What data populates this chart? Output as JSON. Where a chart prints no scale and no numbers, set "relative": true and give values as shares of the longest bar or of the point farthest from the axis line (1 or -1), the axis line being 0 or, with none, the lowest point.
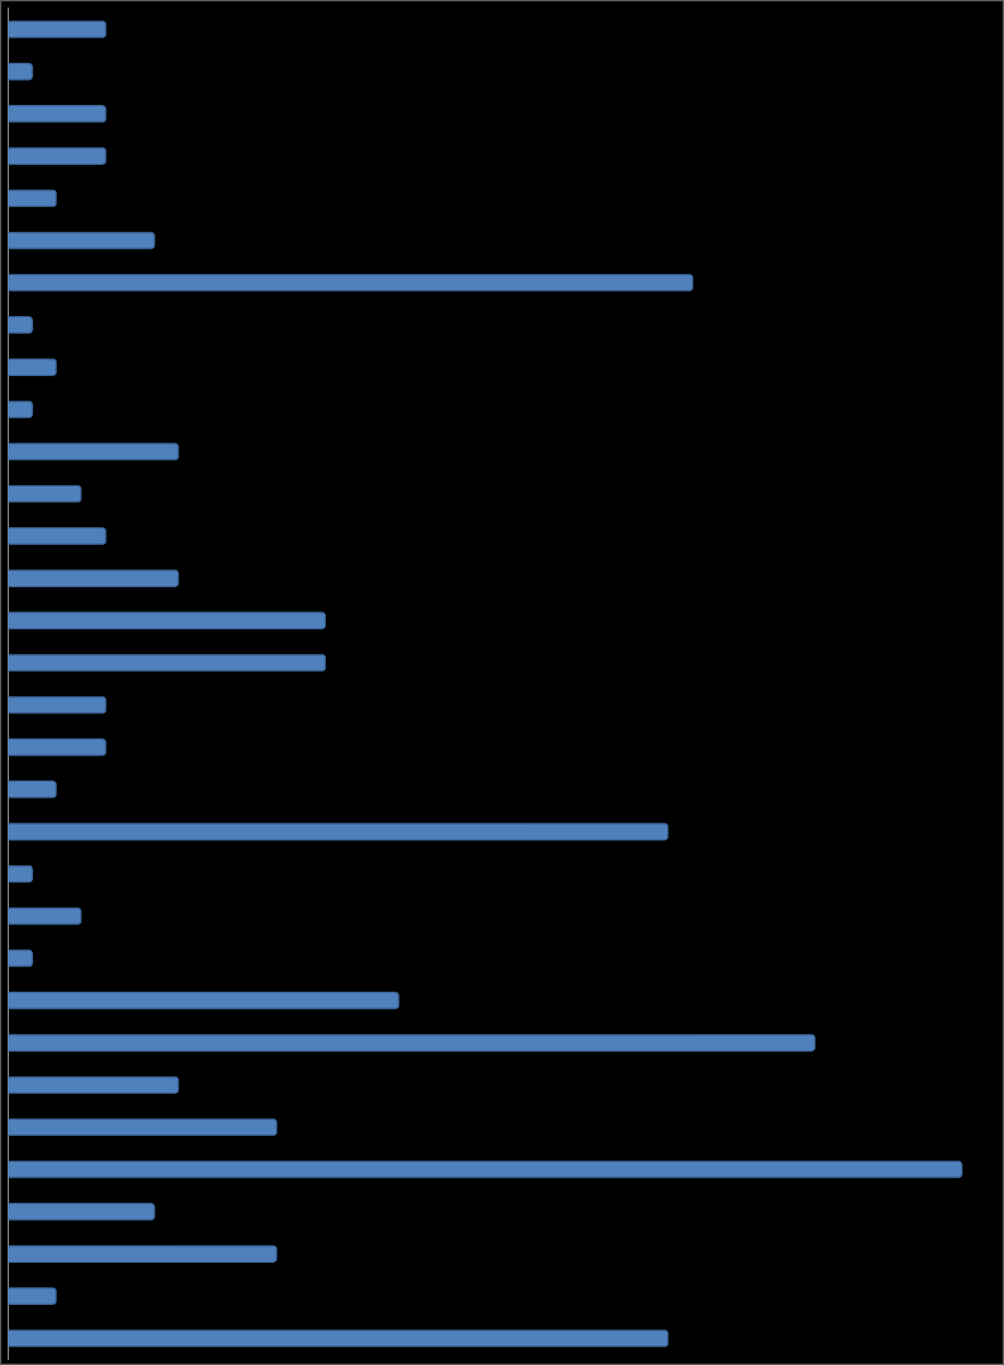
{
  "chart_data": {
    "type": "bar",
    "orientation": "horizontal",
    "relative": true,
    "color": "#4f81bd",
    "categories": [
      null,
      null,
      null,
      null,
      null,
      null,
      null,
      null,
      null,
      null,
      null,
      null,
      null,
      null,
      null,
      null,
      null,
      null,
      null,
      null,
      null,
      null,
      null,
      null,
      null,
      null,
      null,
      null,
      null,
      null,
      null,
      null
    ],
    "values": [
      0.103,
      0.026,
      0.103,
      0.103,
      0.051,
      0.154,
      0.718,
      0.026,
      0.051,
      0.026,
      0.179,
      0.077,
      0.103,
      0.179,
      0.333,
      0.333,
      0.103,
      0.103,
      0.051,
      0.692,
      0.026,
      0.077,
      0.026,
      0.41,
      0.846,
      0.179,
      0.282,
      1,
      0.154,
      0.282,
      0.051,
      0.692
    ]
  }
}
